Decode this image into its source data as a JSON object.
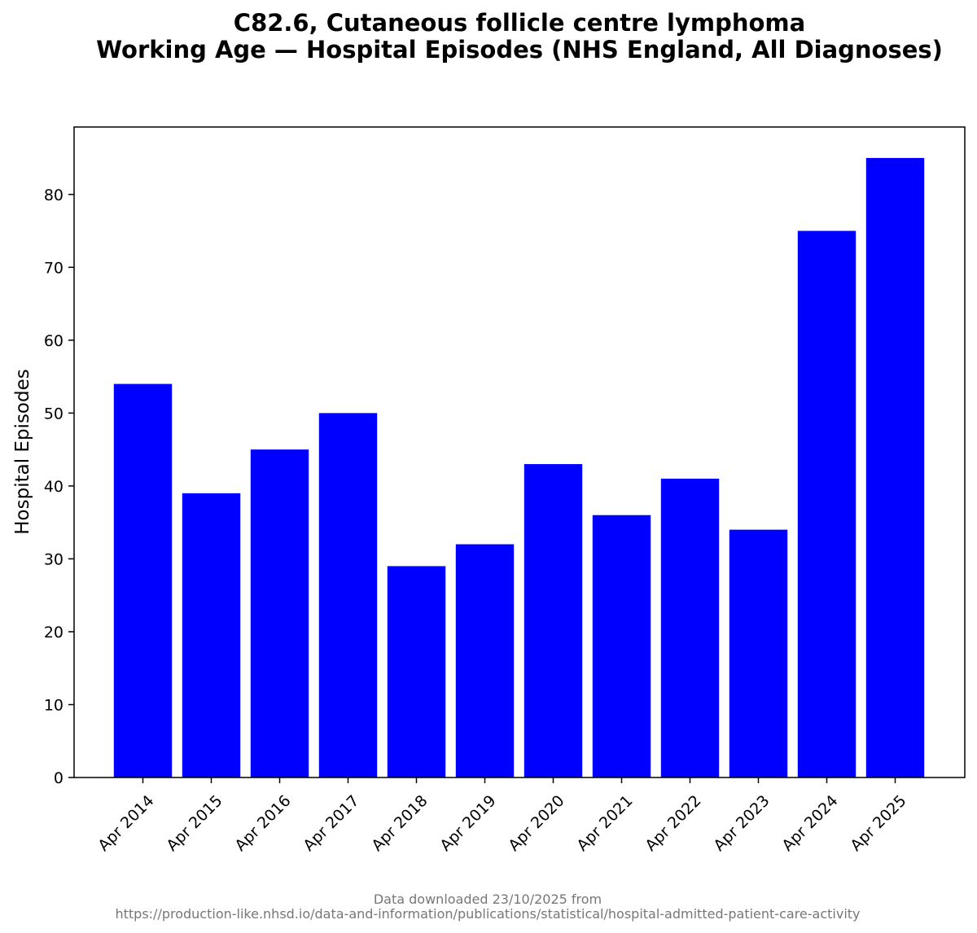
{
  "chart_data": {
    "type": "bar",
    "title_line1": "C82.6, Cutaneous follicle centre lymphoma",
    "title_line2": "Working Age — Hospital Episodes (NHS England, All Diagnoses)",
    "xlabel": "",
    "ylabel": "Hospital Episodes",
    "categories": [
      "Apr 2014",
      "Apr 2015",
      "Apr 2016",
      "Apr 2017",
      "Apr 2018",
      "Apr 2019",
      "Apr 2020",
      "Apr 2021",
      "Apr 2022",
      "Apr 2023",
      "Apr 2024",
      "Apr 2025"
    ],
    "values": [
      54,
      39,
      45,
      50,
      29,
      32,
      43,
      36,
      41,
      34,
      75,
      85
    ],
    "ylim": [
      0,
      89.25
    ],
    "yticks": [
      0,
      10,
      20,
      30,
      40,
      50,
      60,
      70,
      80
    ],
    "bar_color": "#0000ff",
    "grid": false,
    "legend": "none"
  },
  "footer": {
    "line1": "Data downloaded 23/10/2025 from",
    "line2": "https://production-like.nhsd.io/data-and-information/publications/statistical/hospital-admitted-patient-care-activity"
  }
}
